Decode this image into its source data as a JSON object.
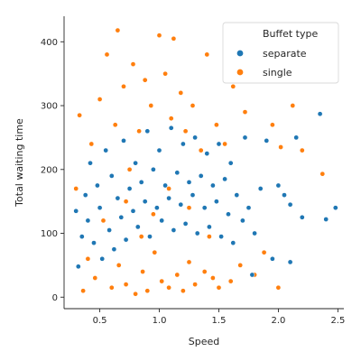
{
  "chart_data": {
    "type": "scatter",
    "xlabel": "Speed",
    "ylabel": "Total waiting time",
    "xlim": [
      0.2,
      2.55
    ],
    "ylim": [
      -18,
      440
    ],
    "xticks": [
      0.5,
      1.0,
      1.5,
      2.0,
      2.5
    ],
    "yticks": [
      0,
      100,
      200,
      300,
      400
    ],
    "xtick_labels": [
      "0.5",
      "1.0",
      "1.5",
      "2.0",
      "2.5"
    ],
    "ytick_labels": [
      "0",
      "100",
      "200",
      "300",
      "400"
    ],
    "grid": false,
    "legend": {
      "title": "Buffet type",
      "placement": "top-right"
    },
    "series": [
      {
        "name": "separate",
        "color": "#1f77b4",
        "points": [
          [
            0.3,
            135
          ],
          [
            0.32,
            48
          ],
          [
            0.35,
            95
          ],
          [
            0.38,
            160
          ],
          [
            0.4,
            120
          ],
          [
            0.42,
            210
          ],
          [
            0.45,
            85
          ],
          [
            0.48,
            175
          ],
          [
            0.5,
            140
          ],
          [
            0.52,
            60
          ],
          [
            0.55,
            230
          ],
          [
            0.58,
            105
          ],
          [
            0.6,
            190
          ],
          [
            0.62,
            75
          ],
          [
            0.65,
            155
          ],
          [
            0.68,
            125
          ],
          [
            0.7,
            245
          ],
          [
            0.72,
            90
          ],
          [
            0.75,
            170
          ],
          [
            0.78,
            135
          ],
          [
            0.8,
            210
          ],
          [
            0.82,
            110
          ],
          [
            0.85,
            180
          ],
          [
            0.88,
            150
          ],
          [
            0.9,
            260
          ],
          [
            0.92,
            95
          ],
          [
            0.95,
            200
          ],
          [
            0.98,
            140
          ],
          [
            1.0,
            230
          ],
          [
            1.02,
            120
          ],
          [
            1.05,
            175
          ],
          [
            1.08,
            155
          ],
          [
            1.1,
            265
          ],
          [
            1.12,
            105
          ],
          [
            1.15,
            195
          ],
          [
            1.18,
            145
          ],
          [
            1.2,
            240
          ],
          [
            1.22,
            115
          ],
          [
            1.25,
            180
          ],
          [
            1.28,
            160
          ],
          [
            1.3,
            250
          ],
          [
            1.32,
            100
          ],
          [
            1.35,
            190
          ],
          [
            1.38,
            140
          ],
          [
            1.4,
            225
          ],
          [
            1.42,
            110
          ],
          [
            1.45,
            175
          ],
          [
            1.48,
            150
          ],
          [
            1.5,
            240
          ],
          [
            1.52,
            95
          ],
          [
            1.55,
            185
          ],
          [
            1.58,
            130
          ],
          [
            1.6,
            210
          ],
          [
            1.62,
            85
          ],
          [
            1.65,
            160
          ],
          [
            1.7,
            120
          ],
          [
            1.72,
            250
          ],
          [
            1.75,
            140
          ],
          [
            1.8,
            100
          ],
          [
            1.85,
            170
          ],
          [
            1.9,
            245
          ],
          [
            1.95,
            60
          ],
          [
            2.0,
            175
          ],
          [
            2.05,
            160
          ],
          [
            2.1,
            145
          ],
          [
            2.15,
            250
          ],
          [
            2.2,
            125
          ],
          [
            2.35,
            287
          ],
          [
            2.4,
            122
          ],
          [
            2.48,
            140
          ],
          [
            1.78,
            35
          ],
          [
            2.1,
            55
          ]
        ]
      },
      {
        "name": "single",
        "color": "#ff7f0e",
        "points": [
          [
            0.3,
            170
          ],
          [
            0.33,
            285
          ],
          [
            0.36,
            10
          ],
          [
            0.4,
            60
          ],
          [
            0.43,
            240
          ],
          [
            0.46,
            30
          ],
          [
            0.5,
            310
          ],
          [
            0.53,
            120
          ],
          [
            0.56,
            380
          ],
          [
            0.6,
            15
          ],
          [
            0.63,
            270
          ],
          [
            0.66,
            50
          ],
          [
            0.7,
            330
          ],
          [
            0.72,
            20
          ],
          [
            0.75,
            200
          ],
          [
            0.78,
            365
          ],
          [
            0.8,
            5
          ],
          [
            0.83,
            260
          ],
          [
            0.86,
            40
          ],
          [
            0.88,
            340
          ],
          [
            0.9,
            10
          ],
          [
            0.93,
            300
          ],
          [
            0.96,
            70
          ],
          [
            1.0,
            410
          ],
          [
            1.02,
            25
          ],
          [
            1.05,
            350
          ],
          [
            1.08,
            15
          ],
          [
            1.1,
            280
          ],
          [
            1.12,
            405
          ],
          [
            1.15,
            35
          ],
          [
            1.18,
            320
          ],
          [
            1.2,
            10
          ],
          [
            1.22,
            260
          ],
          [
            1.25,
            55
          ],
          [
            1.28,
            300
          ],
          [
            1.3,
            20
          ],
          [
            1.35,
            230
          ],
          [
            1.38,
            40
          ],
          [
            1.4,
            380
          ],
          [
            1.45,
            30
          ],
          [
            1.48,
            270
          ],
          [
            1.5,
            15
          ],
          [
            1.55,
            240
          ],
          [
            1.6,
            25
          ],
          [
            1.62,
            330
          ],
          [
            1.68,
            50
          ],
          [
            1.72,
            290
          ],
          [
            1.8,
            35
          ],
          [
            1.88,
            70
          ],
          [
            1.95,
            270
          ],
          [
            2.0,
            15
          ],
          [
            2.02,
            235
          ],
          [
            2.12,
            300
          ],
          [
            2.2,
            230
          ],
          [
            2.37,
            193
          ],
          [
            0.65,
            418
          ],
          [
            1.08,
            170
          ],
          [
            0.95,
            130
          ],
          [
            0.85,
            95
          ],
          [
            1.25,
            140
          ],
          [
            0.72,
            150
          ],
          [
            1.42,
            95
          ]
        ]
      }
    ]
  }
}
